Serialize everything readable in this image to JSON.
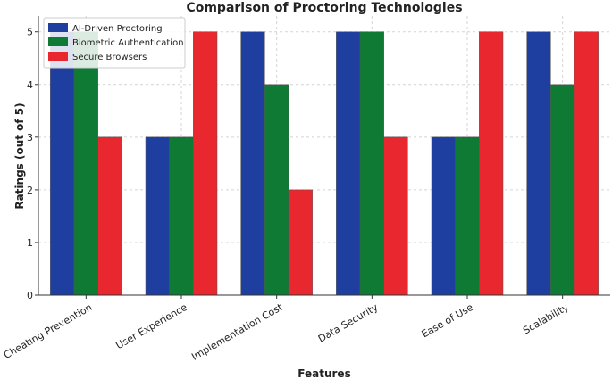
{
  "chart_data": {
    "type": "bar",
    "title": "Comparison of Proctoring Technologies",
    "xlabel": "Features",
    "ylabel": "Ratings (out of 5)",
    "categories": [
      "Cheating Prevention",
      "User Experience",
      "Implementation Cost",
      "Data Security",
      "Ease of Use",
      "Scalability"
    ],
    "series": [
      {
        "name": "AI-Driven Proctoring",
        "values": [
          5,
          3,
          5,
          5,
          3,
          5
        ],
        "color": "#1f3fa0"
      },
      {
        "name": "Biometric Authentication",
        "values": [
          5,
          3,
          4,
          5,
          3,
          4
        ],
        "color": "#0e7a34"
      },
      {
        "name": "Secure Browsers",
        "values": [
          3,
          5,
          2,
          3,
          5,
          5
        ],
        "color": "#e8282e"
      }
    ],
    "yticks": [
      "0",
      "1",
      "2",
      "3",
      "4",
      "5"
    ],
    "ylim": [
      0,
      5.3
    ],
    "grid": true,
    "legend_position": "top-left"
  }
}
